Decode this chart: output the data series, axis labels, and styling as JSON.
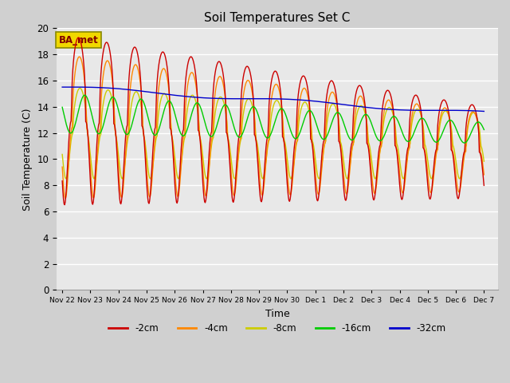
{
  "title": "Soil Temperatures Set C",
  "xlabel": "Time",
  "ylabel": "Soil Temperature (C)",
  "ylim": [
    0,
    20
  ],
  "annotation": "BA_met",
  "series": [
    "-2cm",
    "-4cm",
    "-8cm",
    "-16cm",
    "-32cm"
  ],
  "colors": [
    "#cc0000",
    "#ff8800",
    "#cccc00",
    "#00cc00",
    "#0000cc"
  ],
  "x_tick_labels": [
    "Nov 22",
    "Nov 23",
    "Nov 24",
    "Nov 25",
    "Nov 26",
    "Nov 27",
    "Nov 28",
    "Nov 29",
    "Nov 30",
    "Dec 1",
    "Dec 2",
    "Dec 3",
    "Dec 4",
    "Dec 5",
    "Dec 6",
    "Dec 7"
  ],
  "x_tick_positions": [
    0,
    1,
    2,
    3,
    4,
    5,
    6,
    7,
    8,
    9,
    10,
    11,
    12,
    13,
    14,
    15
  ],
  "figsize": [
    6.4,
    4.8
  ],
  "dpi": 100
}
